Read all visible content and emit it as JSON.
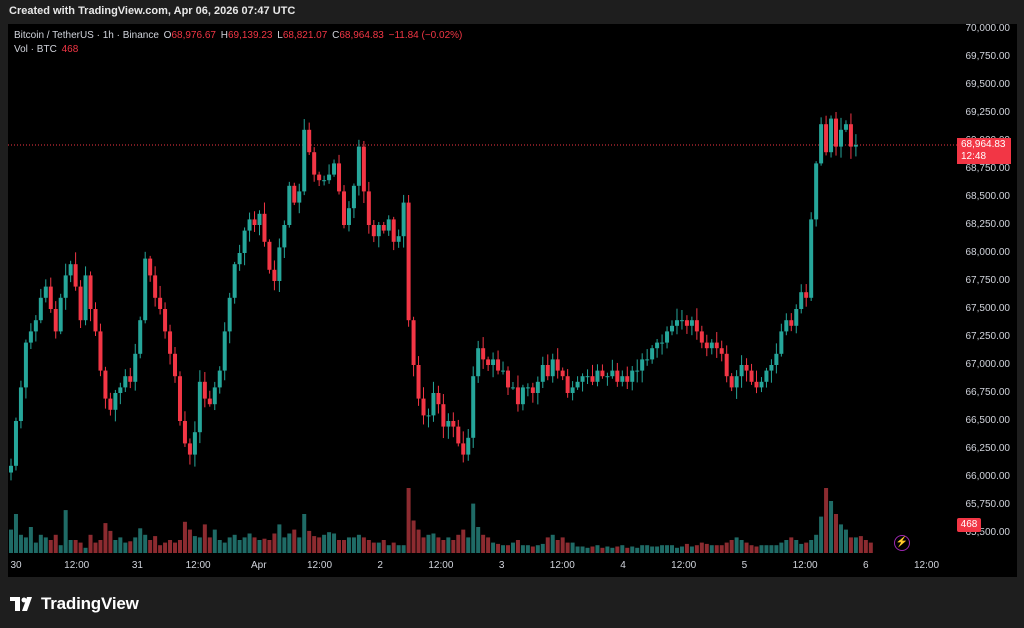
{
  "header": {
    "created_text": "Created with TradingView.com, Apr 06, 2026 07:47 UTC"
  },
  "legend": {
    "symbol": "Bitcoin / TetherUS · 1h · Binance",
    "o_label": "O",
    "o_value": "68,976.67",
    "h_label": "H",
    "h_value": "69,139.23",
    "l_label": "L",
    "l_value": "68,821.07",
    "c_label": "C",
    "c_value": "68,964.83",
    "change": "−11.84 (−0.02%)",
    "vol_label": "Vol · BTC",
    "vol_value": "468"
  },
  "price_tag": {
    "price": "68,964.83",
    "countdown": "12:48"
  },
  "vol_tag": "468",
  "footer": {
    "logo_text": "TradingView"
  },
  "colors": {
    "up": "#26a69a",
    "down": "#f23645",
    "vol_up": "#1f6b66",
    "vol_down": "#8c2b30",
    "background": "#000000"
  },
  "chart_data": {
    "type": "candlestick",
    "y_ticks": [
      "70,000.00",
      "69,750.00",
      "69,500.00",
      "69,250.00",
      "69,000.00",
      "68,750.00",
      "68,500.00",
      "68,250.00",
      "68,000.00",
      "67,750.00",
      "67,500.00",
      "67,250.00",
      "67,000.00",
      "66,750.00",
      "66,500.00",
      "66,250.00",
      "66,000.00",
      "65,750.00",
      "65,500.00"
    ],
    "ylim": [
      65500,
      70000
    ],
    "x_ticks": [
      "30",
      "12:00",
      "31",
      "12:00",
      "Apr",
      "12:00",
      "2",
      "12:00",
      "3",
      "12:00",
      "4",
      "12:00",
      "5",
      "12:00",
      "6",
      "12:00"
    ],
    "last_price": 68964.83,
    "closes": [
      66100,
      66500,
      66800,
      67200,
      67300,
      67400,
      67600,
      67700,
      67500,
      67300,
      67600,
      67800,
      67900,
      67700,
      67400,
      67800,
      67500,
      67300,
      66950,
      66700,
      66600,
      66750,
      66800,
      66900,
      66850,
      67100,
      67400,
      67950,
      67800,
      67600,
      67500,
      67300,
      67100,
      66900,
      66500,
      66300,
      66200,
      66400,
      66850,
      66700,
      66650,
      66800,
      66950,
      67300,
      67600,
      67900,
      68000,
      68200,
      68300,
      68250,
      68350,
      68100,
      67850,
      67750,
      68050,
      68250,
      68600,
      68450,
      68550,
      69100,
      68900,
      68700,
      68650,
      68650,
      68700,
      68800,
      68550,
      68250,
      68400,
      68600,
      68950,
      68550,
      68250,
      68150,
      68250,
      68200,
      68300,
      68100,
      68150,
      68450,
      67400,
      67000,
      66700,
      66550,
      66550,
      66750,
      66650,
      66450,
      66500,
      66450,
      66300,
      66200,
      66350,
      66900,
      67150,
      67050,
      67000,
      67050,
      66950,
      66950,
      66800,
      66800,
      66650,
      66800,
      66800,
      66750,
      66850,
      67000,
      66900,
      67050,
      66950,
      66900,
      66750,
      66800,
      66850,
      66900,
      66900,
      66850,
      66950,
      66900,
      66900,
      66950,
      66850,
      66900,
      66850,
      66950,
      66950,
      67050,
      67050,
      67150,
      67200,
      67200,
      67300,
      67350,
      67400,
      67400,
      67350,
      67400,
      67300,
      67200,
      67150,
      67200,
      67150,
      67100,
      66900,
      66800,
      66900,
      67000,
      66950,
      66850,
      66800,
      66850,
      66950,
      67000,
      67100,
      67300,
      67400,
      67350,
      67500,
      67650,
      67600,
      68300,
      68800,
      69150,
      68900,
      69200,
      68950,
      69100,
      69150,
      68950,
      68964.83
    ],
    "volumes": [
      0.18,
      0.3,
      0.14,
      0.12,
      0.2,
      0.08,
      0.14,
      0.12,
      0.1,
      0.14,
      0.06,
      0.33,
      0.1,
      0.1,
      0.08,
      0.04,
      0.14,
      0.08,
      0.1,
      0.23,
      0.17,
      0.1,
      0.12,
      0.08,
      0.09,
      0.12,
      0.19,
      0.14,
      0.1,
      0.13,
      0.06,
      0.08,
      0.1,
      0.08,
      0.1,
      0.24,
      0.18,
      0.13,
      0.12,
      0.22,
      0.12,
      0.18,
      0.1,
      0.08,
      0.12,
      0.14,
      0.1,
      0.12,
      0.15,
      0.12,
      0.1,
      0.11,
      0.1,
      0.15,
      0.22,
      0.12,
      0.15,
      0.18,
      0.12,
      0.3,
      0.17,
      0.13,
      0.12,
      0.14,
      0.16,
      0.15,
      0.1,
      0.1,
      0.12,
      0.12,
      0.14,
      0.12,
      0.1,
      0.08,
      0.08,
      0.1,
      0.06,
      0.08,
      0.06,
      0.06,
      0.5,
      0.25,
      0.18,
      0.12,
      0.14,
      0.15,
      0.12,
      0.1,
      0.12,
      0.1,
      0.14,
      0.18,
      0.12,
      0.38,
      0.2,
      0.14,
      0.12,
      0.08,
      0.07,
      0.06,
      0.06,
      0.08,
      0.1,
      0.06,
      0.06,
      0.05,
      0.06,
      0.07,
      0.12,
      0.14,
      0.1,
      0.12,
      0.08,
      0.08,
      0.05,
      0.05,
      0.04,
      0.05,
      0.06,
      0.04,
      0.05,
      0.04,
      0.05,
      0.06,
      0.04,
      0.05,
      0.04,
      0.06,
      0.06,
      0.05,
      0.05,
      0.06,
      0.06,
      0.06,
      0.04,
      0.05,
      0.07,
      0.05,
      0.06,
      0.08,
      0.07,
      0.06,
      0.06,
      0.06,
      0.08,
      0.1,
      0.12,
      0.1,
      0.08,
      0.06,
      0.05,
      0.06,
      0.06,
      0.06,
      0.06,
      0.08,
      0.1,
      0.12,
      0.1,
      0.07,
      0.08,
      0.1,
      0.14,
      0.28,
      0.5,
      0.4,
      0.3,
      0.22,
      0.18,
      0.12,
      0.12,
      0.13,
      0.1,
      0.08
    ]
  }
}
